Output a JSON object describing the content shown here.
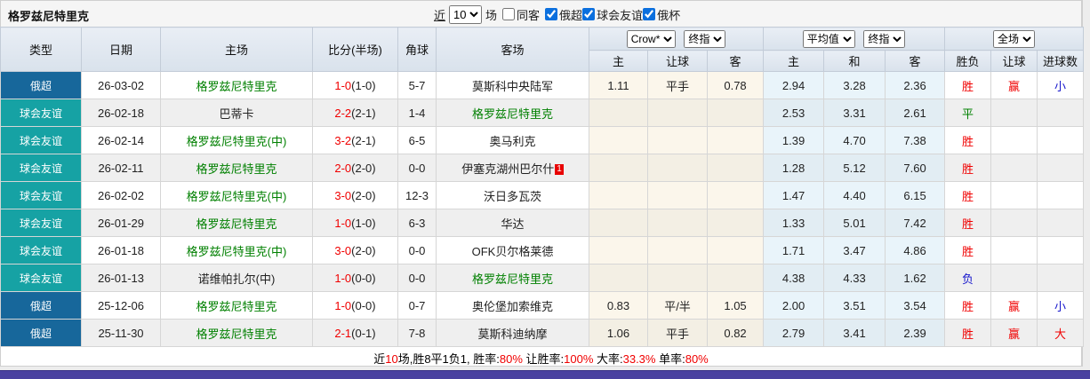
{
  "title": "格罗兹尼特里克",
  "filters": {
    "near_label": "近",
    "count_value": "10",
    "count_suffix": "场",
    "checkboxes": [
      {
        "label": "同客",
        "checked": false,
        "gap": true
      },
      {
        "label": "俄超",
        "checked": true,
        "gap": false
      },
      {
        "label": "球会友谊",
        "checked": true,
        "gap": false
      },
      {
        "label": "俄杯",
        "checked": true,
        "gap": false
      }
    ]
  },
  "header": {
    "static_cols": [
      "类型",
      "日期",
      "主场",
      "比分(半场)",
      "角球",
      "客场"
    ],
    "ah_group": {
      "select1": "Crow*",
      "select2": "终指",
      "sub": [
        "主",
        "让球",
        "客"
      ]
    },
    "eu_group": {
      "select1": "平均值",
      "select2": "终指",
      "sub": [
        "主",
        "和",
        "客"
      ]
    },
    "result_group": {
      "select": "全场",
      "sub": [
        "胜负",
        "让球",
        "进球数"
      ]
    }
  },
  "colors": {
    "type": {
      "俄超": "#17679b",
      "球会友谊": "#16a2a4"
    },
    "red": "#f00000",
    "blue": "#1515cc",
    "green": "#008000"
  },
  "rows": [
    {
      "type": "俄超",
      "date": "26-03-02",
      "home": "格罗兹尼特里克",
      "home_self": true,
      "score": "1-0",
      "half": "(1-0)",
      "corner": "5-7",
      "away": "莫斯科中央陆军",
      "away_self": false,
      "red_card": "",
      "ah": [
        "1.11",
        "平手",
        "0.78"
      ],
      "eu": [
        "2.94",
        "3.28",
        "2.36"
      ],
      "result": "胜",
      "result_color": "red",
      "bet": "赢",
      "goal": "小",
      "goal_color": "blue"
    },
    {
      "type": "球会友谊",
      "date": "26-02-18",
      "home": "巴蒂卡",
      "home_self": false,
      "score": "2-2",
      "half": "(2-1)",
      "corner": "1-4",
      "away": "格罗兹尼特里克",
      "away_self": true,
      "red_card": "",
      "ah": [
        "",
        "",
        ""
      ],
      "eu": [
        "2.53",
        "3.31",
        "2.61"
      ],
      "result": "平",
      "result_color": "green",
      "bet": "",
      "goal": "",
      "goal_color": ""
    },
    {
      "type": "球会友谊",
      "date": "26-02-14",
      "home": "格罗兹尼特里克(中)",
      "home_self": true,
      "score": "3-2",
      "half": "(2-1)",
      "corner": "6-5",
      "away": "奥马利克",
      "away_self": false,
      "red_card": "",
      "ah": [
        "",
        "",
        ""
      ],
      "eu": [
        "1.39",
        "4.70",
        "7.38"
      ],
      "result": "胜",
      "result_color": "red",
      "bet": "",
      "goal": "",
      "goal_color": ""
    },
    {
      "type": "球会友谊",
      "date": "26-02-11",
      "home": "格罗兹尼特里克",
      "home_self": true,
      "score": "2-0",
      "half": "(2-0)",
      "corner": "0-0",
      "away": "伊塞克湖州巴尔什",
      "away_self": false,
      "red_card": "1",
      "ah": [
        "",
        "",
        ""
      ],
      "eu": [
        "1.28",
        "5.12",
        "7.60"
      ],
      "result": "胜",
      "result_color": "red",
      "bet": "",
      "goal": "",
      "goal_color": ""
    },
    {
      "type": "球会友谊",
      "date": "26-02-02",
      "home": "格罗兹尼特里克(中)",
      "home_self": true,
      "score": "3-0",
      "half": "(2-0)",
      "corner": "12-3",
      "away": "沃日多瓦茨",
      "away_self": false,
      "red_card": "",
      "ah": [
        "",
        "",
        ""
      ],
      "eu": [
        "1.47",
        "4.40",
        "6.15"
      ],
      "result": "胜",
      "result_color": "red",
      "bet": "",
      "goal": "",
      "goal_color": ""
    },
    {
      "type": "球会友谊",
      "date": "26-01-29",
      "home": "格罗兹尼特里克",
      "home_self": true,
      "score": "1-0",
      "half": "(1-0)",
      "corner": "6-3",
      "away": "华达",
      "away_self": false,
      "red_card": "",
      "ah": [
        "",
        "",
        ""
      ],
      "eu": [
        "1.33",
        "5.01",
        "7.42"
      ],
      "result": "胜",
      "result_color": "red",
      "bet": "",
      "goal": "",
      "goal_color": ""
    },
    {
      "type": "球会友谊",
      "date": "26-01-18",
      "home": "格罗兹尼特里克(中)",
      "home_self": true,
      "score": "3-0",
      "half": "(2-0)",
      "corner": "0-0",
      "away": "OFK贝尔格莱德",
      "away_self": false,
      "red_card": "",
      "ah": [
        "",
        "",
        ""
      ],
      "eu": [
        "1.71",
        "3.47",
        "4.86"
      ],
      "result": "胜",
      "result_color": "red",
      "bet": "",
      "goal": "",
      "goal_color": ""
    },
    {
      "type": "球会友谊",
      "date": "26-01-13",
      "home": "诺维帕扎尔(中)",
      "home_self": false,
      "score": "1-0",
      "half": "(0-0)",
      "corner": "0-0",
      "away": "格罗兹尼特里克",
      "away_self": true,
      "red_card": "",
      "ah": [
        "",
        "",
        ""
      ],
      "eu": [
        "4.38",
        "4.33",
        "1.62"
      ],
      "result": "负",
      "result_color": "blue",
      "bet": "",
      "goal": "",
      "goal_color": ""
    },
    {
      "type": "俄超",
      "date": "25-12-06",
      "home": "格罗兹尼特里克",
      "home_self": true,
      "score": "1-0",
      "half": "(0-0)",
      "corner": "0-7",
      "away": "奥伦堡加索维克",
      "away_self": false,
      "red_card": "",
      "ah": [
        "0.83",
        "平/半",
        "1.05"
      ],
      "eu": [
        "2.00",
        "3.51",
        "3.54"
      ],
      "result": "胜",
      "result_color": "red",
      "bet": "赢",
      "goal": "小",
      "goal_color": "blue"
    },
    {
      "type": "俄超",
      "date": "25-11-30",
      "home": "格罗兹尼特里克",
      "home_self": true,
      "score": "2-1",
      "half": "(0-1)",
      "corner": "7-8",
      "away": "莫斯科迪纳摩",
      "away_self": false,
      "red_card": "",
      "ah": [
        "1.06",
        "平手",
        "0.82"
      ],
      "eu": [
        "2.79",
        "3.41",
        "2.39"
      ],
      "result": "胜",
      "result_color": "red",
      "bet": "赢",
      "goal": "大",
      "goal_color": "red"
    }
  ],
  "footer": {
    "parts": [
      {
        "text": "近",
        "red": false
      },
      {
        "text": "10",
        "red": true
      },
      {
        "text": "场,胜8平1负1, 胜率:",
        "red": false
      },
      {
        "text": "80%",
        "red": true
      },
      {
        "text": " 让胜率:",
        "red": false
      },
      {
        "text": "100%",
        "red": true
      },
      {
        "text": " 大率:",
        "red": false
      },
      {
        "text": "33.3%",
        "red": true
      },
      {
        "text": " 单率:",
        "red": false
      },
      {
        "text": "80%",
        "red": true
      }
    ]
  }
}
